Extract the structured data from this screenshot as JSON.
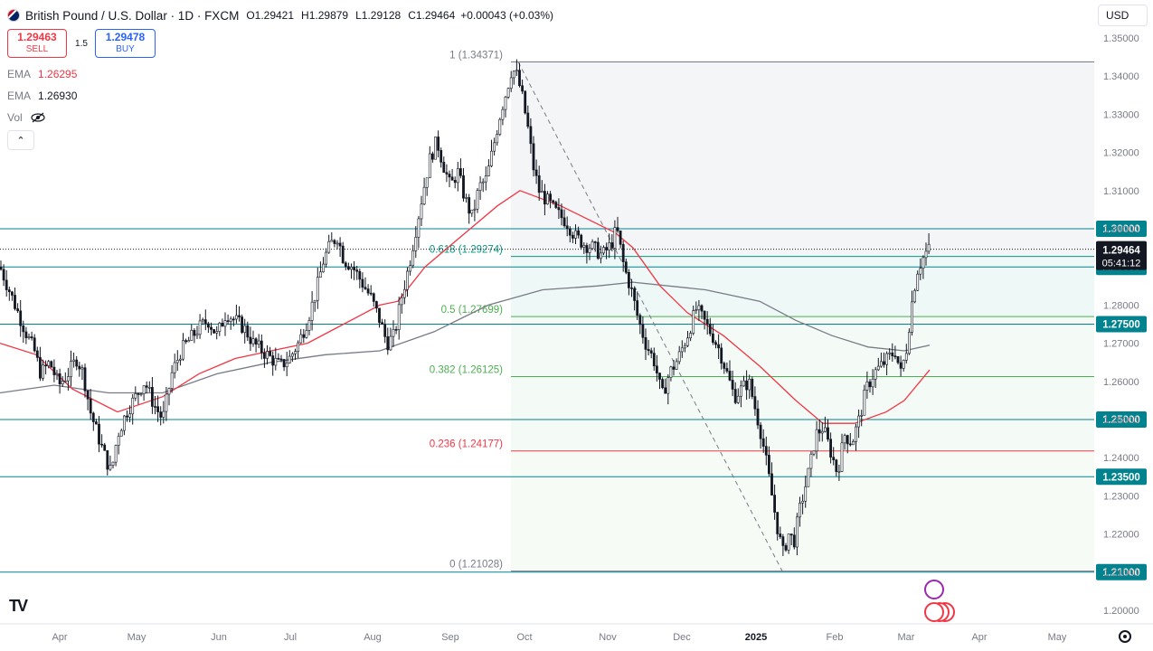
{
  "header": {
    "title": "British Pound / U.S. Dollar · 1D · FXCM",
    "open_label": "O",
    "open": "1.29421",
    "high_label": "H",
    "high": "1.29879",
    "low_label": "L",
    "low": "1.29128",
    "close_label": "C",
    "close": "1.29464",
    "change": "+0.00043 (+0.03%)"
  },
  "trade": {
    "sell_price": "1.29463",
    "sell_label": "SELL",
    "spread": "1.5",
    "buy_price": "1.29478",
    "buy_label": "BUY"
  },
  "indicators": [
    {
      "name": "EMA",
      "value": "1.26295",
      "color": "#f23645"
    },
    {
      "name": "EMA",
      "value": "1.26930",
      "color": "#131722"
    },
    {
      "name": "Vol",
      "value": ""
    }
  ],
  "currency": "USD",
  "chart_data": {
    "type": "candlestick",
    "symbol": "GBPUSD",
    "timeframe": "1D",
    "ylim": [
      1.2,
      1.35
    ],
    "y_ticks": [
      "1.35000",
      "1.34000",
      "1.33000",
      "1.32000",
      "1.31000",
      "1.30000",
      "1.29000",
      "1.28000",
      "1.27000",
      "1.26000",
      "1.25000",
      "1.24000",
      "1.23000",
      "1.22000",
      "1.21000",
      "1.20000"
    ],
    "x_ticks": [
      "Apr",
      "May",
      "Jun",
      "Jul",
      "Aug",
      "Sep",
      "Oct",
      "Nov",
      "Dec",
      "2025",
      "Feb",
      "Mar",
      "Apr",
      "May"
    ],
    "horizontal_levels": [
      {
        "price": 1.3,
        "label": "1.30000"
      },
      {
        "price": 1.29,
        "label": "1.29000"
      },
      {
        "price": 1.275,
        "label": "1.27500"
      },
      {
        "price": 1.25,
        "label": "1.25000"
      },
      {
        "price": 1.235,
        "label": "1.23500"
      },
      {
        "price": 1.21,
        "label": "1.21000"
      }
    ],
    "last_price": {
      "value": "1.29464",
      "countdown": "05:41:12",
      "price": 1.29464
    },
    "fibonacci": [
      {
        "level": "1",
        "price": 1.34371,
        "label": "1 (1.34371)",
        "color": "#787b86"
      },
      {
        "level": "0.618",
        "price": 1.29274,
        "label": "0.618 (1.29274)",
        "color": "#089981"
      },
      {
        "level": "0.5",
        "price": 1.27699,
        "label": "0.5 (1.27699)",
        "color": "#4caf50"
      },
      {
        "level": "0.382",
        "price": 1.26125,
        "label": "0.382 (1.26125)",
        "color": "#4caf50"
      },
      {
        "level": "0.236",
        "price": 1.24177,
        "label": "0.236 (1.24177)",
        "color": "#f23645"
      },
      {
        "level": "0",
        "price": 1.21028,
        "label": "0 (1.21028)",
        "color": "#787b86"
      }
    ],
    "price_path": [
      [
        0,
        1.29
      ],
      [
        10,
        1.284
      ],
      [
        20,
        1.278
      ],
      [
        30,
        1.272
      ],
      [
        38,
        1.268
      ],
      [
        45,
        1.262
      ],
      [
        55,
        1.265
      ],
      [
        65,
        1.259
      ],
      [
        75,
        1.262
      ],
      [
        85,
        1.266
      ],
      [
        92,
        1.262
      ],
      [
        100,
        1.252
      ],
      [
        108,
        1.246
      ],
      [
        115,
        1.241
      ],
      [
        123,
        1.236
      ],
      [
        130,
        1.246
      ],
      [
        140,
        1.252
      ],
      [
        150,
        1.256
      ],
      [
        160,
        1.26
      ],
      [
        170,
        1.254
      ],
      [
        180,
        1.25
      ],
      [
        190,
        1.262
      ],
      [
        200,
        1.268
      ],
      [
        210,
        1.271
      ],
      [
        220,
        1.274
      ],
      [
        230,
        1.276
      ],
      [
        240,
        1.272
      ],
      [
        250,
        1.278
      ],
      [
        260,
        1.276
      ],
      [
        270,
        1.274
      ],
      [
        280,
        1.27
      ],
      [
        290,
        1.268
      ],
      [
        300,
        1.266
      ],
      [
        310,
        1.264
      ],
      [
        320,
        1.266
      ],
      [
        330,
        1.27
      ],
      [
        340,
        1.276
      ],
      [
        350,
        1.284
      ],
      [
        358,
        1.292
      ],
      [
        366,
        1.296
      ],
      [
        373,
        1.298
      ],
      [
        380,
        1.292
      ],
      [
        390,
        1.29
      ],
      [
        400,
        1.286
      ],
      [
        410,
        1.282
      ],
      [
        420,
        1.276
      ],
      [
        428,
        1.27
      ],
      [
        436,
        1.272
      ],
      [
        444,
        1.282
      ],
      [
        452,
        1.29
      ],
      [
        460,
        1.3
      ],
      [
        468,
        1.31
      ],
      [
        475,
        1.318
      ],
      [
        483,
        1.323
      ],
      [
        490,
        1.317
      ],
      [
        498,
        1.311
      ],
      [
        506,
        1.315
      ],
      [
        514,
        1.308
      ],
      [
        522,
        1.303
      ],
      [
        530,
        1.311
      ],
      [
        538,
        1.313
      ],
      [
        546,
        1.322
      ],
      [
        554,
        1.331
      ],
      [
        560,
        1.336
      ],
      [
        566,
        1.342
      ],
      [
        572,
        1.34
      ],
      [
        578,
        1.334
      ],
      [
        584,
        1.326
      ],
      [
        590,
        1.316
      ],
      [
        596,
        1.31
      ],
      [
        606,
        1.307
      ],
      [
        616,
        1.304
      ],
      [
        626,
        1.302
      ],
      [
        636,
        1.298
      ],
      [
        646,
        1.296
      ],
      [
        656,
        1.295
      ],
      [
        666,
        1.293
      ],
      [
        676,
        1.296
      ],
      [
        682,
        1.3
      ],
      [
        690,
        1.29
      ],
      [
        698,
        1.284
      ],
      [
        706,
        1.276
      ],
      [
        714,
        1.27
      ],
      [
        724,
        1.265
      ],
      [
        732,
        1.256
      ],
      [
        740,
        1.262
      ],
      [
        750,
        1.266
      ],
      [
        760,
        1.272
      ],
      [
        770,
        1.279
      ],
      [
        778,
        1.276
      ],
      [
        788,
        1.272
      ],
      [
        796,
        1.268
      ],
      [
        804,
        1.262
      ],
      [
        812,
        1.256
      ],
      [
        820,
        1.258
      ],
      [
        828,
        1.26
      ],
      [
        836,
        1.252
      ],
      [
        842,
        1.246
      ],
      [
        848,
        1.238
      ],
      [
        855,
        1.228
      ],
      [
        861,
        1.22
      ],
      [
        866,
        1.215
      ],
      [
        872,
        1.22
      ],
      [
        878,
        1.218
      ],
      [
        884,
        1.226
      ],
      [
        890,
        1.232
      ],
      [
        896,
        1.238
      ],
      [
        902,
        1.246
      ],
      [
        910,
        1.248
      ],
      [
        918,
        1.242
      ],
      [
        926,
        1.236
      ],
      [
        934,
        1.246
      ],
      [
        942,
        1.244
      ],
      [
        950,
        1.25
      ],
      [
        958,
        1.258
      ],
      [
        966,
        1.262
      ],
      [
        974,
        1.264
      ],
      [
        982,
        1.266
      ],
      [
        990,
        1.268
      ],
      [
        996,
        1.262
      ],
      [
        1002,
        1.268
      ],
      [
        1008,
        1.28
      ],
      [
        1014,
        1.289
      ],
      [
        1020,
        1.292
      ],
      [
        1026,
        1.2946
      ]
    ],
    "ema_fast": [
      [
        0,
        1.27
      ],
      [
        40,
        1.267
      ],
      [
        80,
        1.258
      ],
      [
        130,
        1.252
      ],
      [
        180,
        1.256
      ],
      [
        220,
        1.262
      ],
      [
        260,
        1.266
      ],
      [
        300,
        1.268
      ],
      [
        340,
        1.27
      ],
      [
        380,
        1.275
      ],
      [
        420,
        1.28
      ],
      [
        440,
        1.281
      ],
      [
        470,
        1.29
      ],
      [
        520,
        1.3
      ],
      [
        550,
        1.306
      ],
      [
        575,
        1.31
      ],
      [
        620,
        1.306
      ],
      [
        680,
        1.299
      ],
      [
        700,
        1.295
      ],
      [
        730,
        1.285
      ],
      [
        760,
        1.278
      ],
      [
        800,
        1.272
      ],
      [
        840,
        1.264
      ],
      [
        880,
        1.255
      ],
      [
        910,
        1.249
      ],
      [
        945,
        1.249
      ],
      [
        980,
        1.252
      ],
      [
        1000,
        1.255
      ],
      [
        1028,
        1.263
      ]
    ],
    "ema_slow": [
      [
        0,
        1.257
      ],
      [
        60,
        1.259
      ],
      [
        120,
        1.257
      ],
      [
        180,
        1.257
      ],
      [
        240,
        1.262
      ],
      [
        300,
        1.265
      ],
      [
        360,
        1.267
      ],
      [
        420,
        1.268
      ],
      [
        480,
        1.273
      ],
      [
        540,
        1.28
      ],
      [
        600,
        1.284
      ],
      [
        660,
        1.285
      ],
      [
        700,
        1.286
      ],
      [
        780,
        1.284
      ],
      [
        840,
        1.281
      ],
      [
        880,
        1.276
      ],
      [
        920,
        1.272
      ],
      [
        960,
        1.269
      ],
      [
        1000,
        1.268
      ],
      [
        1028,
        1.2695
      ]
    ],
    "trendline": {
      "from": [
        573,
        1.34371
      ],
      "to": [
        865,
        1.21028
      ],
      "style": "dashed"
    }
  }
}
